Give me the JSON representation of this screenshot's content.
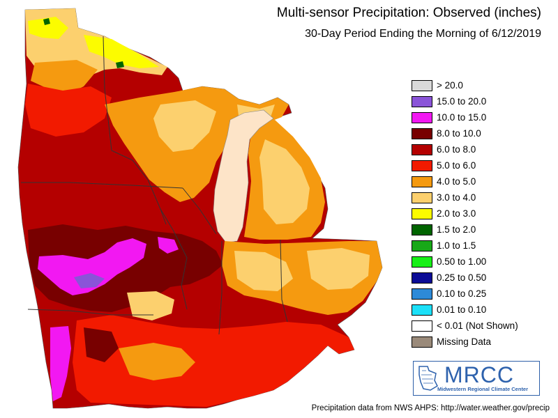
{
  "title": "Multi-sensor Precipitation: Observed (inches)",
  "subtitle": "30-Day Period Ending the Morning of 6/12/2019",
  "legend": [
    {
      "label": "> 20.0",
      "color": "#d9d9d9"
    },
    {
      "label": "15.0 to 20.0",
      "color": "#8a54d8"
    },
    {
      "label": "10.0 to 15.0",
      "color": "#f218f2"
    },
    {
      "label": "8.0 to 10.0",
      "color": "#780000"
    },
    {
      "label": "6.0 to 8.0",
      "color": "#b40000"
    },
    {
      "label": "5.0 to 6.0",
      "color": "#f21a00"
    },
    {
      "label": "4.0 to 5.0",
      "color": "#f59a10"
    },
    {
      "label": "3.0 to 4.0",
      "color": "#fcd06e"
    },
    {
      "label": "2.0 to 3.0",
      "color": "#fcfc00"
    },
    {
      "label": "1.5 to 2.0",
      "color": "#006400"
    },
    {
      "label": "1.0 to 1.5",
      "color": "#18a818"
    },
    {
      "label": "0.50 to 1.00",
      "color": "#18f018"
    },
    {
      "label": "0.25 to 0.50",
      "color": "#0c0c96"
    },
    {
      "label": "0.10 to 0.25",
      "color": "#2d8ad8"
    },
    {
      "label": "0.01 to 0.10",
      "color": "#1ce0f8"
    },
    {
      "label": "< 0.01 (Not Shown)",
      "color": "#ffffff"
    },
    {
      "label": "Missing Data",
      "color": "#9a8a7a"
    }
  ],
  "logo": {
    "name": "MRCC",
    "full_name": "Midwestern Regional Climate Center"
  },
  "credit": "Precipitation data from NWS AHPS: http://water.weather.gov/precip",
  "colors": {
    "lake": "#fde4c8",
    "background": "#ffffff"
  }
}
